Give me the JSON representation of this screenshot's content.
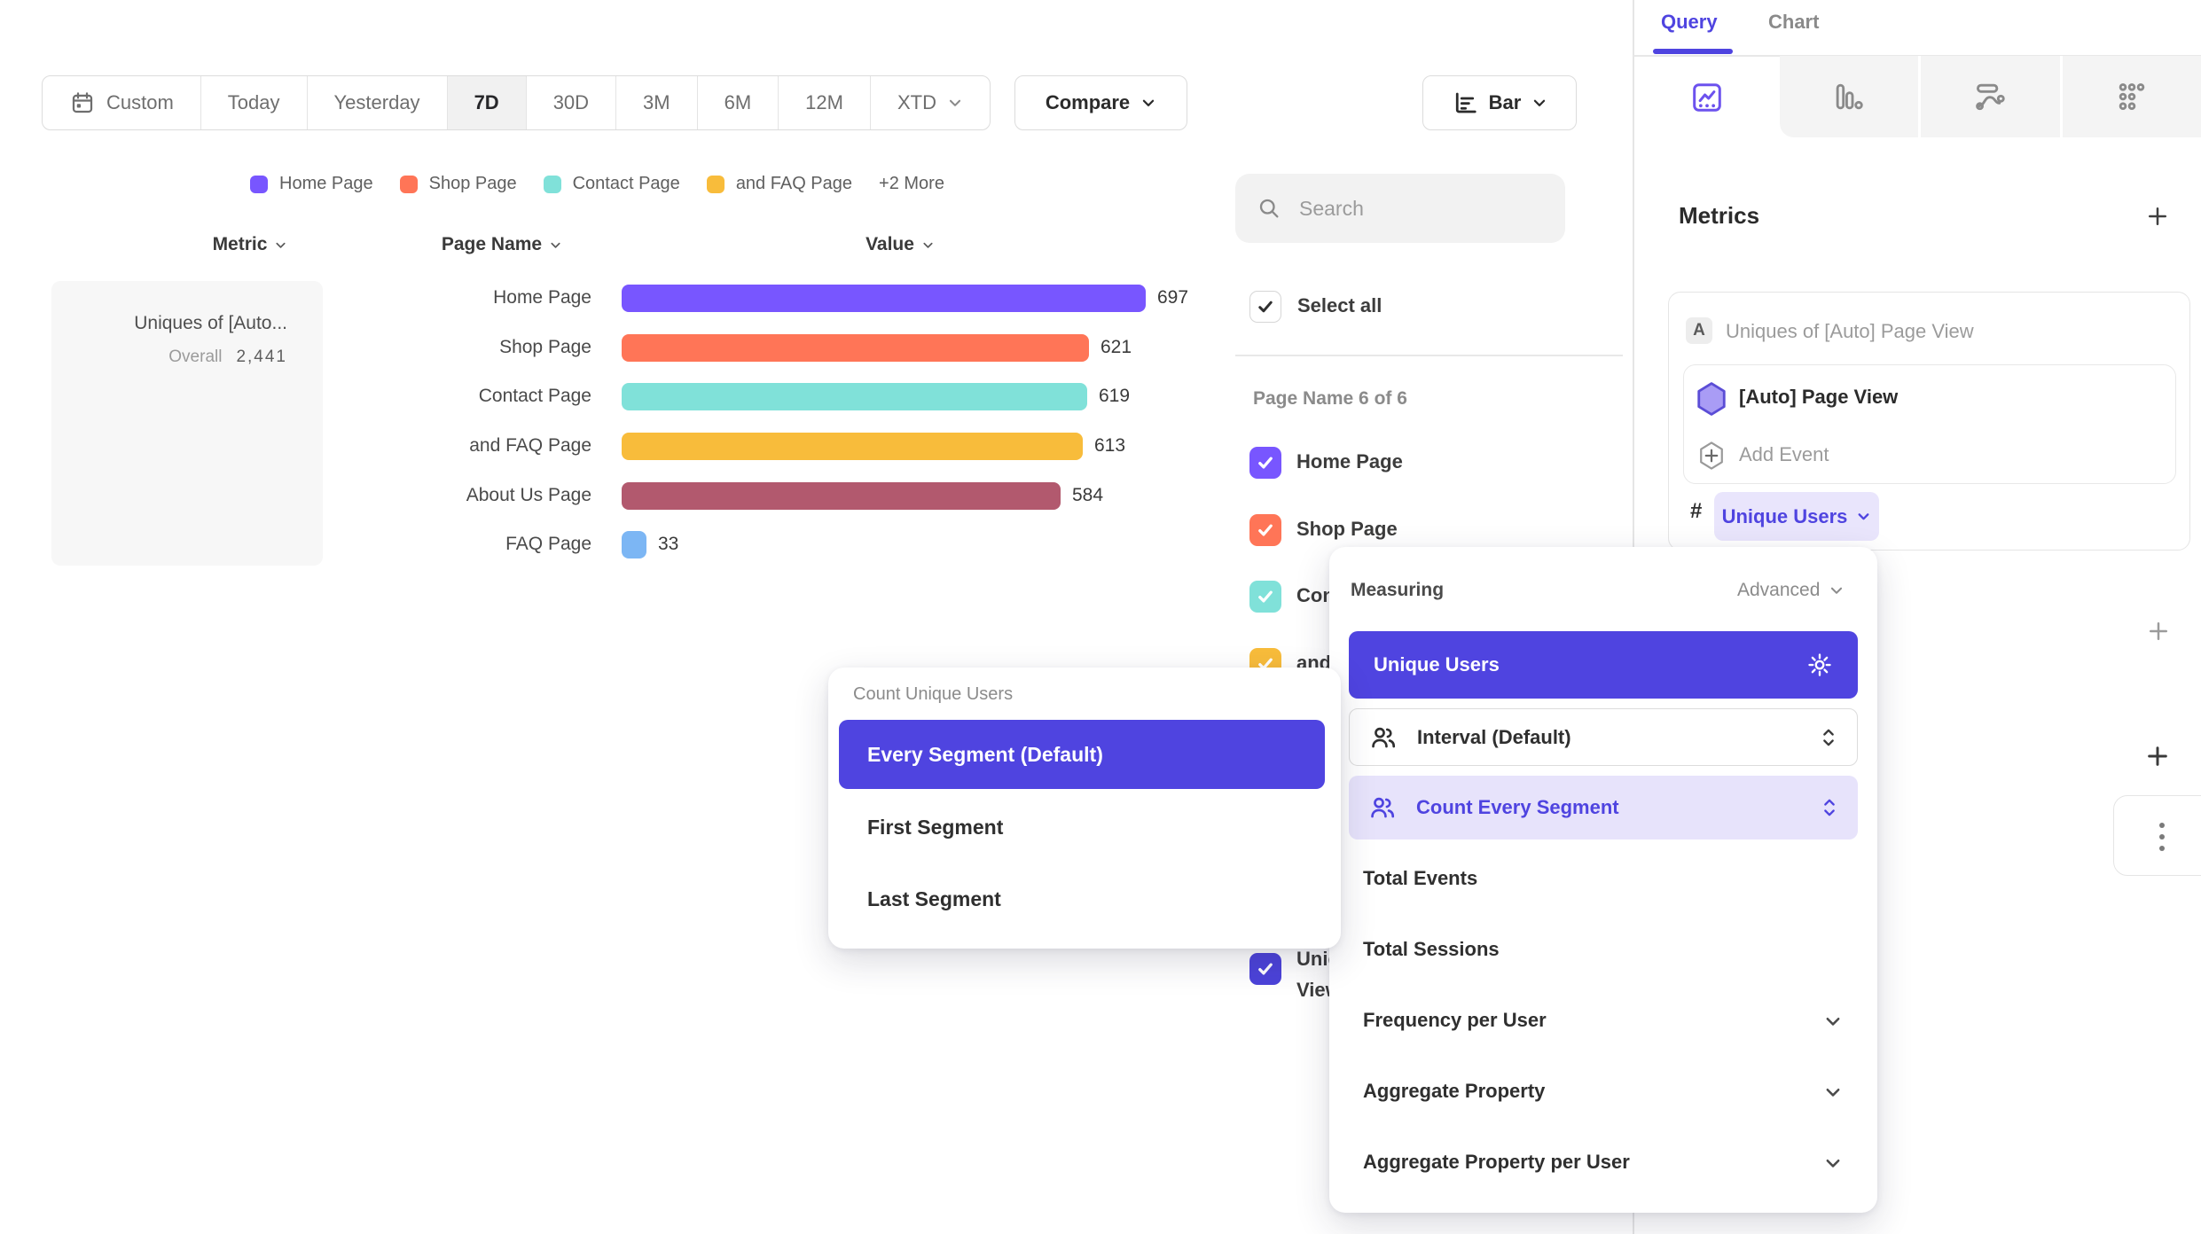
{
  "toolbar": {
    "date_ranges": [
      "Custom",
      "Today",
      "Yesterday",
      "7D",
      "30D",
      "3M",
      "6M",
      "12M",
      "XTD"
    ],
    "active_range": "7D",
    "compare_label": "Compare",
    "chart_type_label": "Bar"
  },
  "legend": {
    "items": [
      {
        "label": "Home Page",
        "color": "#7856FF"
      },
      {
        "label": "Shop Page",
        "color": "#FF7557"
      },
      {
        "label": "Contact Page",
        "color": "#80E1D9"
      },
      {
        "label": "and FAQ Page",
        "color": "#F8BC3B"
      }
    ],
    "more_label": "+2 More"
  },
  "table": {
    "columns": {
      "metric": "Metric",
      "page_name": "Page Name",
      "value": "Value"
    },
    "metric_name": "Uniques of [Auto...",
    "overall_label": "Overall",
    "overall_value": "2,441"
  },
  "chart_data": {
    "type": "bar",
    "orientation": "horizontal",
    "series_name": "Uniques of [Auto] Page View",
    "categories": [
      "Home Page",
      "Shop Page",
      "Contact Page",
      "and FAQ Page",
      "About Us Page",
      "FAQ Page"
    ],
    "values": [
      697,
      621,
      619,
      613,
      584,
      33
    ],
    "colors": [
      "#7856FF",
      "#FF7557",
      "#80E1D9",
      "#F8BC3B",
      "#B2596E",
      "#7CB6F4"
    ],
    "overall": 2441,
    "data_labels": true,
    "legend_position": "top",
    "xlim": [
      0,
      700
    ]
  },
  "filter_panel": {
    "search_placeholder": "Search",
    "select_all_label": "Select all",
    "group_label": "Page Name 6 of 6",
    "items": [
      {
        "label": "Home Page",
        "color": "#7856FF",
        "checked": true
      },
      {
        "label": "Shop Page",
        "color": "#FF7557",
        "checked": true
      },
      {
        "label": "Contact Page",
        "color": "#80E1D9",
        "checked": true
      },
      {
        "label": "and FAQ Page",
        "color": "#F8BC3B",
        "checked": true
      },
      {
        "label": "About Us Page",
        "color": "#B2596E",
        "checked": true
      },
      {
        "label": "FAQ Page",
        "color": "#7CB6F4",
        "checked": true
      }
    ],
    "extra_item": {
      "label": "Uniques of [Auto] Page View",
      "color": "#4C43D9",
      "checked": true
    }
  },
  "query_panel": {
    "tabs": {
      "query": "Query",
      "chart": "Chart"
    },
    "active_tab": "Query",
    "metrics_heading": "Metrics",
    "metric_card": {
      "badge": "A",
      "title": "Uniques of [Auto] Page View",
      "event_name": "[Auto] Page View",
      "add_event_label": "Add Event",
      "aggregation_prefix": "#",
      "aggregation_label": "Unique Users"
    }
  },
  "segment_popup": {
    "title": "Count Unique Users",
    "selected": "Every Segment (Default)",
    "options": [
      "First Segment",
      "Last Segment"
    ]
  },
  "measuring_popup": {
    "title": "Measuring",
    "advanced_label": "Advanced",
    "selected": "Unique Users",
    "interval_label": "Interval (Default)",
    "count_label": "Count Every Segment",
    "options": [
      "Total Events",
      "Total Sessions",
      "Frequency per User",
      "Aggregate Property",
      "Aggregate Property per User"
    ]
  },
  "colors": {
    "accent": "#4F44E0",
    "accent_light_bg": "#E9E5FC",
    "toolbar_active_bg": "#f1f1f1",
    "panel_gray": "#f4f4f4"
  }
}
